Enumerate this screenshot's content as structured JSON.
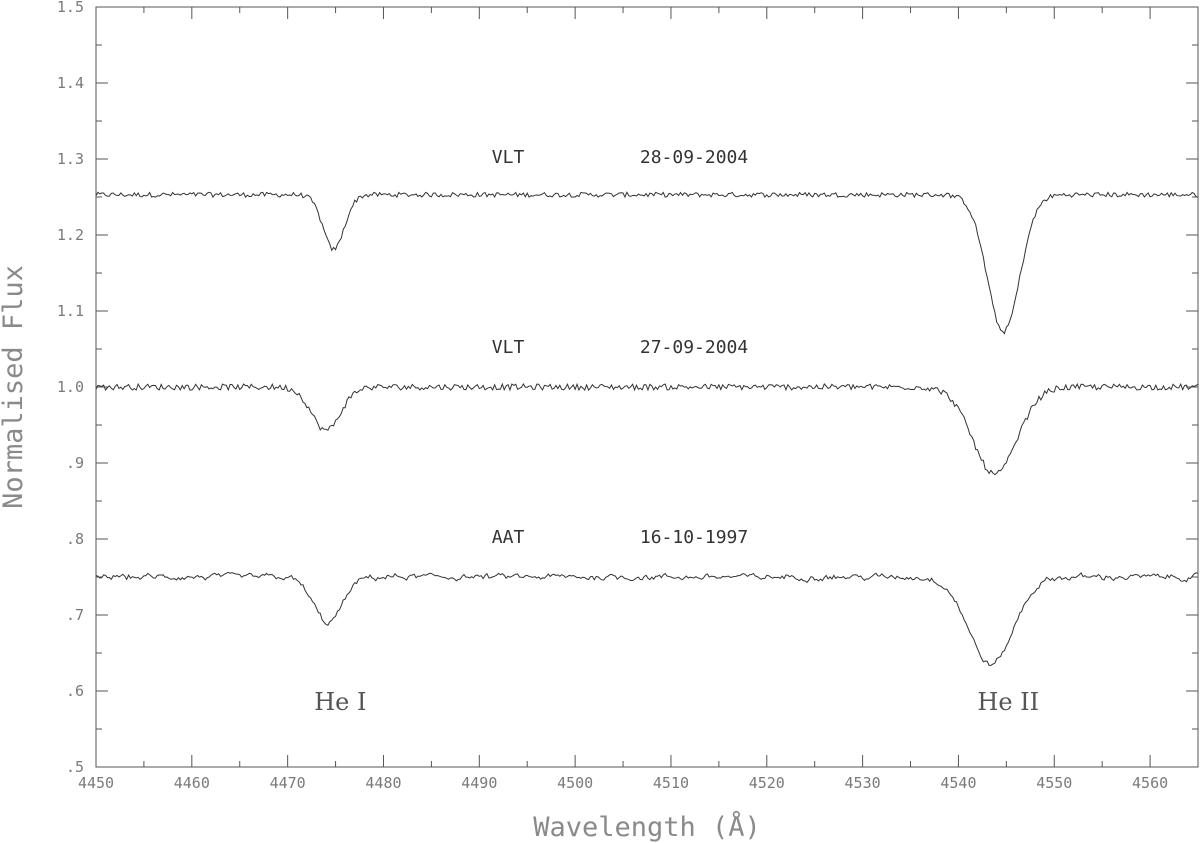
{
  "chart_data": {
    "type": "line",
    "title": "",
    "xlabel": "Wavelength (Å)",
    "ylabel": "Normalised Flux",
    "xlim": [
      4450,
      4565
    ],
    "ylim": [
      0.5,
      1.5
    ],
    "x_ticks": [
      {
        "value": 4450,
        "label": "4450"
      },
      {
        "value": 4460,
        "label": "4460"
      },
      {
        "value": 4470,
        "label": "4470"
      },
      {
        "value": 4480,
        "label": "4480"
      },
      {
        "value": 4490,
        "label": "4490"
      },
      {
        "value": 4500,
        "label": "4500"
      },
      {
        "value": 4510,
        "label": "4510"
      },
      {
        "value": 4520,
        "label": "4520"
      },
      {
        "value": 4530,
        "label": "4530"
      },
      {
        "value": 4540,
        "label": "4540"
      },
      {
        "value": 4550,
        "label": "4550"
      },
      {
        "value": 4560,
        "label": "4560"
      }
    ],
    "y_ticks": [
      {
        "value": 0.5,
        "label": ".5"
      },
      {
        "value": 0.6,
        "label": ".6"
      },
      {
        "value": 0.7,
        "label": ".7"
      },
      {
        "value": 0.8,
        "label": ".8"
      },
      {
        "value": 0.9,
        "label": ".9"
      },
      {
        "value": 1.0,
        "label": "1.0"
      },
      {
        "value": 1.1,
        "label": "1.1"
      },
      {
        "value": 1.2,
        "label": "1.2"
      },
      {
        "value": 1.3,
        "label": "1.3"
      },
      {
        "value": 1.4,
        "label": "1.4"
      },
      {
        "value": 1.5,
        "label": "1.5"
      }
    ],
    "grid": false,
    "series": [
      {
        "telescope": "VLT",
        "date": "28-09-2004",
        "continuum": 1.253,
        "noise": 0.004,
        "label_pos": [
          4493,
          1.295
        ],
        "lines": [
          {
            "center": 4474.8,
            "depth": 0.072,
            "width": 1.1
          },
          {
            "center": 4544.7,
            "depth": 0.18,
            "width": 1.7
          }
        ]
      },
      {
        "telescope": "VLT",
        "date": "27-09-2004",
        "continuum": 1.0,
        "noise": 0.005,
        "label_pos": [
          4493,
          1.045
        ],
        "lines": [
          {
            "center": 4474.0,
            "depth": 0.057,
            "width": 1.5
          },
          {
            "center": 4543.8,
            "depth": 0.115,
            "width": 2.3
          }
        ]
      },
      {
        "telescope": "AAT",
        "date": "16-10-1997",
        "continuum": 0.75,
        "noise": 0.007,
        "label_pos": [
          4493,
          0.795
        ],
        "lines": [
          {
            "center": 4474.2,
            "depth": 0.06,
            "width": 1.5
          },
          {
            "center": 4543.4,
            "depth": 0.115,
            "width": 2.3
          }
        ]
      }
    ],
    "annotations": [
      {
        "text": "He I",
        "x": 4475.5,
        "y": 0.575
      },
      {
        "text": "He II",
        "x": 4545.2,
        "y": 0.575
      }
    ]
  }
}
